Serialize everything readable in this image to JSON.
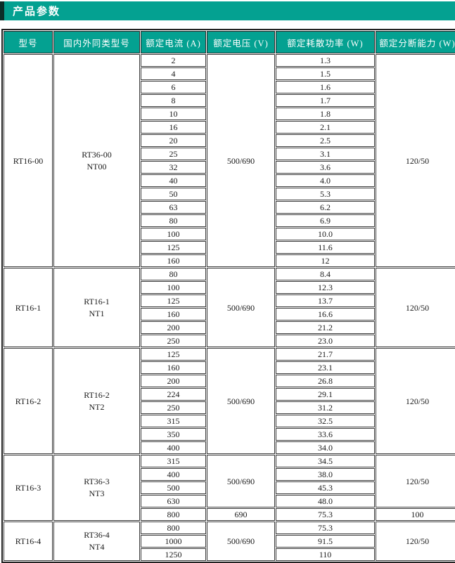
{
  "title": "产品参数",
  "colors": {
    "accent": "#04a191",
    "accent_dark": "#0c2e29",
    "border": "#3a3a3a",
    "outer_border": "#222222",
    "text": "#1a1a1a"
  },
  "table": {
    "headers": [
      "型号",
      "国内外同类型号",
      "额定电流 (A)",
      "额定电压 (V)",
      "额定耗散功率 (W)",
      "额定分断能力 (W)"
    ],
    "sections": [
      {
        "model": "RT16-00",
        "equiv": [
          "RT36-00",
          "NT00"
        ],
        "voltage": "500/690",
        "breaking": "120/50",
        "rows": [
          [
            "2",
            "1.3"
          ],
          [
            "4",
            "1.5"
          ],
          [
            "6",
            "1.6"
          ],
          [
            "8",
            "1.7"
          ],
          [
            "10",
            "1.8"
          ],
          [
            "16",
            "2.1"
          ],
          [
            "20",
            "2.5"
          ],
          [
            "25",
            "3.1"
          ],
          [
            "32",
            "3.6"
          ],
          [
            "40",
            "4.0"
          ],
          [
            "50",
            "5.3"
          ],
          [
            "63",
            "6.2"
          ],
          [
            "80",
            "6.9"
          ],
          [
            "100",
            "10.0"
          ],
          [
            "125",
            "11.6"
          ],
          [
            "160",
            "12"
          ]
        ]
      },
      {
        "model": "RT16-1",
        "equiv": [
          "RT16-1",
          "NT1"
        ],
        "voltage": "500/690",
        "breaking": "120/50",
        "rows": [
          [
            "80",
            "8.4"
          ],
          [
            "100",
            "12.3"
          ],
          [
            "125",
            "13.7"
          ],
          [
            "160",
            "16.6"
          ],
          [
            "200",
            "21.2"
          ],
          [
            "250",
            "23.0"
          ]
        ]
      },
      {
        "model": "RT16-2",
        "equiv": [
          "RT16-2",
          "NT2"
        ],
        "voltage": "500/690",
        "breaking": "120/50",
        "rows": [
          [
            "125",
            "21.7"
          ],
          [
            "160",
            "23.1"
          ],
          [
            "200",
            "26.8"
          ],
          [
            "224",
            "29.1"
          ],
          [
            "250",
            "31.2"
          ],
          [
            "315",
            "32.5"
          ],
          [
            "350",
            "33.6"
          ],
          [
            "400",
            "34.0"
          ]
        ]
      },
      {
        "model": "RT16-3",
        "equiv": [
          "RT36-3",
          "NT3"
        ],
        "voltage": "500/690",
        "breaking": "120/50",
        "rows": [
          [
            "315",
            "34.5"
          ],
          [
            "400",
            "38.0"
          ],
          [
            "500",
            "45.3"
          ],
          [
            "630",
            "48.0"
          ]
        ],
        "extra": {
          "current": "800",
          "voltage": "690",
          "power": "75.3",
          "breaking": "100"
        }
      },
      {
        "model": "RT16-4",
        "equiv": [
          "RT36-4",
          "NT4"
        ],
        "voltage": "500/690",
        "breaking": "120/50",
        "rows": [
          [
            "800",
            "75.3"
          ],
          [
            "1000",
            "91.5"
          ],
          [
            "1250",
            "110"
          ]
        ]
      }
    ]
  }
}
